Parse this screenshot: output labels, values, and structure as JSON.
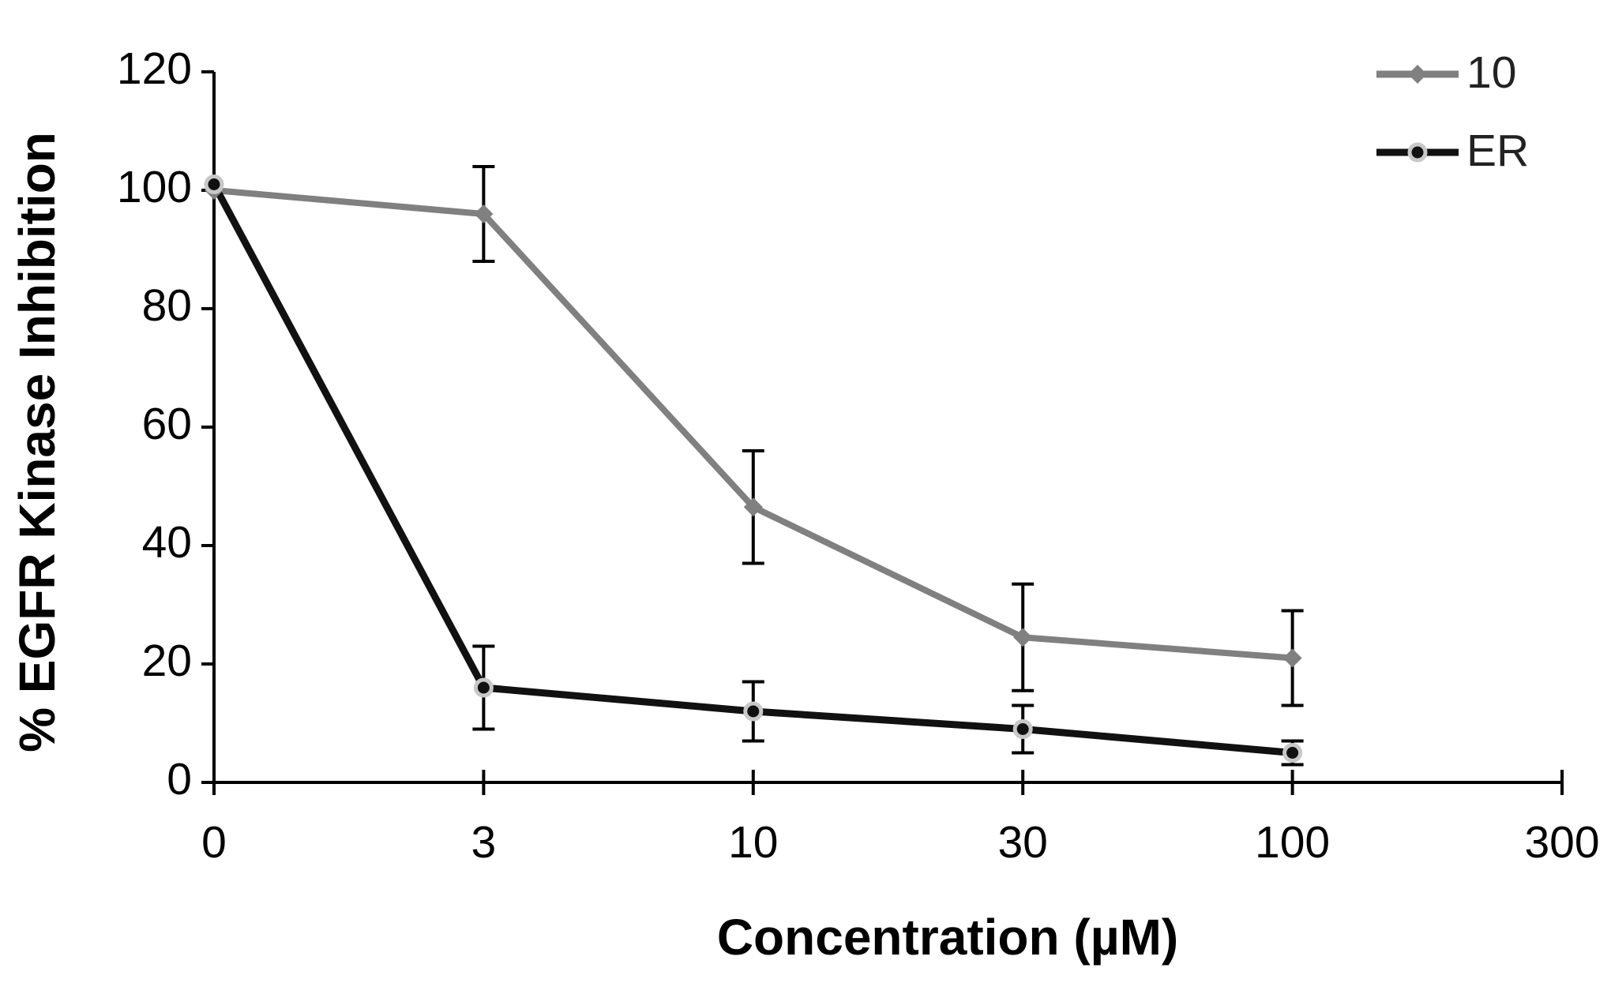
{
  "chart_data": {
    "type": "line",
    "x_label": "Concentration (µM)",
    "y_label": "% EGFR Kinase Inhibition",
    "categories": [
      "0",
      "3",
      "10",
      "30",
      "100",
      "300"
    ],
    "series": [
      {
        "name": "10",
        "color": "#808080",
        "marker": "diamond",
        "values": [
          100,
          96,
          46.5,
          24.5,
          21,
          null
        ],
        "errors": [
          0,
          8,
          9.5,
          9,
          8,
          null
        ]
      },
      {
        "name": "ER",
        "color": "#111111",
        "marker": "circle",
        "values": [
          101,
          16,
          12,
          9,
          5,
          null
        ],
        "errors": [
          0,
          7,
          5,
          4,
          2,
          null
        ]
      }
    ],
    "ylim": [
      0,
      120
    ],
    "yticks": [
      0,
      20,
      40,
      60,
      80,
      100,
      120
    ],
    "legend": "upper right",
    "grid": false
  }
}
